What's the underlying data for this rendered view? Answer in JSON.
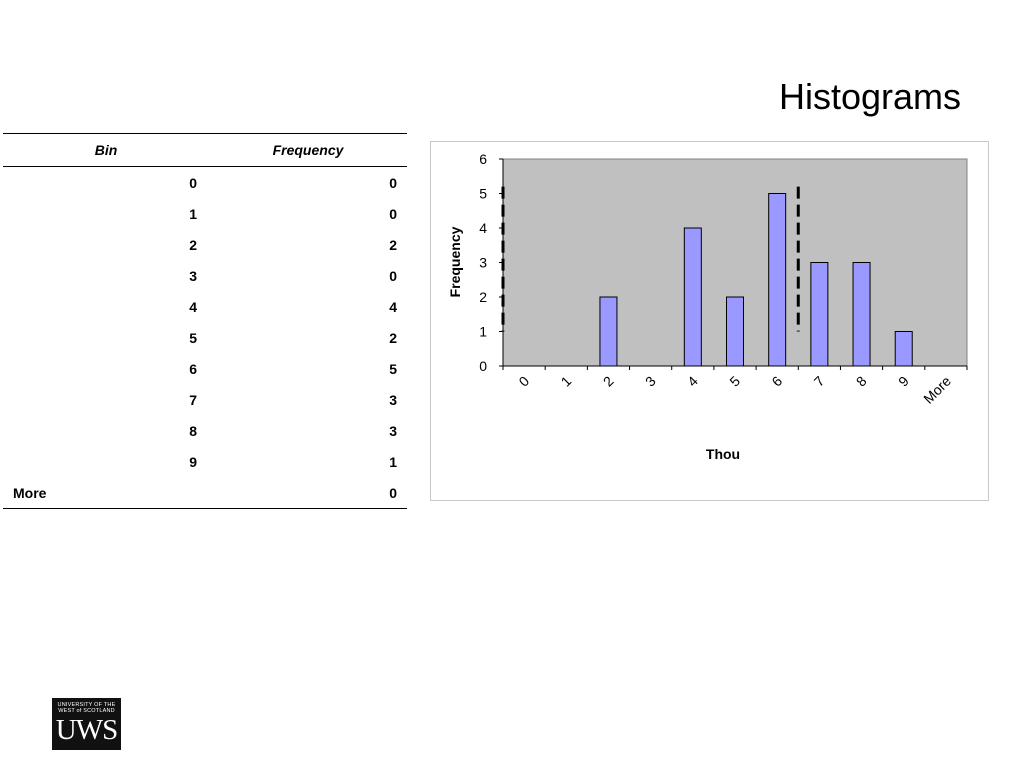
{
  "slide": {
    "title": "Histograms"
  },
  "table": {
    "headers": [
      "Bin",
      "Frequency"
    ],
    "rows": [
      [
        "0",
        "0"
      ],
      [
        "1",
        "0"
      ],
      [
        "2",
        "2"
      ],
      [
        "3",
        "0"
      ],
      [
        "4",
        "4"
      ],
      [
        "5",
        "2"
      ],
      [
        "6",
        "5"
      ],
      [
        "7",
        "3"
      ],
      [
        "8",
        "3"
      ],
      [
        "9",
        "1"
      ],
      [
        "More",
        "0"
      ]
    ]
  },
  "chart_data": {
    "type": "bar",
    "categories": [
      "0",
      "1",
      "2",
      "3",
      "4",
      "5",
      "6",
      "7",
      "8",
      "9",
      "More"
    ],
    "values": [
      0,
      0,
      2,
      0,
      4,
      2,
      5,
      3,
      3,
      1,
      0
    ],
    "title": "",
    "xlabel": "Thou",
    "ylabel": "Frequency",
    "ylim": [
      0,
      6
    ],
    "yticks": [
      "0",
      "1",
      "2",
      "3",
      "4",
      "5",
      "6"
    ],
    "grid": false,
    "legend": "none",
    "bar_color": "#9999ff",
    "plot_background": "#c0c0c0",
    "annotations": [
      {
        "type": "dashed-vertical-line",
        "x": 0,
        "y_range": [
          1,
          5.2
        ]
      },
      {
        "type": "dashed-vertical-line",
        "x": 6.5,
        "y_range": [
          1,
          5.2
        ]
      }
    ]
  },
  "logo": {
    "small_text": [
      "UNIVERSITY OF THE",
      "WEST of SCOTLAND"
    ],
    "big_text": "UWS"
  }
}
